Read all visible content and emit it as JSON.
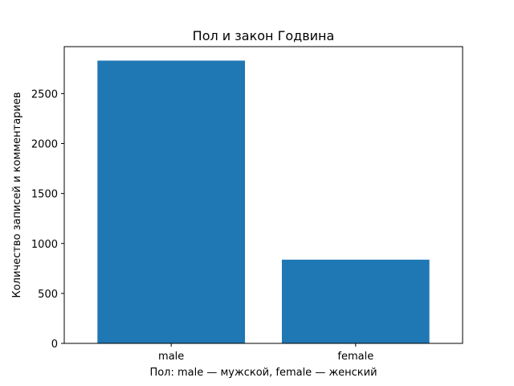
{
  "chart_data": {
    "type": "bar",
    "title": "Пол и закон Годвина",
    "xlabel": "Пол: male — мужской, female — женский",
    "ylabel": "Количество записей и комментариев",
    "categories": [
      "male",
      "female"
    ],
    "values": [
      2830,
      838
    ],
    "ylim": [
      0,
      2970
    ],
    "yticks": [
      0,
      500,
      1000,
      1500,
      2000,
      2500
    ],
    "ytick_labels": [
      "0",
      "500",
      "1000",
      "1500",
      "2000",
      "2500"
    ],
    "bar_color": "#1f77b4",
    "grid": false,
    "legend": "none"
  }
}
